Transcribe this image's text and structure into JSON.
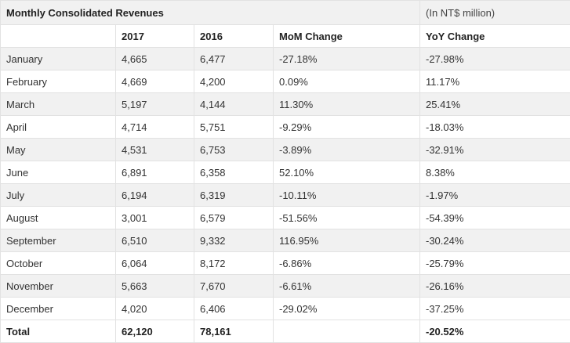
{
  "table": {
    "title": "Monthly Consolidated Revenues",
    "unit_note": "(In NT$ million)",
    "headers": [
      "",
      "2017",
      "2016",
      "MoM Change",
      "YoY Change"
    ],
    "rows": [
      [
        "January",
        "4,665",
        "6,477",
        "-27.18%",
        "-27.98%"
      ],
      [
        "February",
        "4,669",
        "4,200",
        "0.09%",
        "11.17%"
      ],
      [
        "March",
        "5,197",
        "4,144",
        "11.30%",
        "25.41%"
      ],
      [
        "April",
        "4,714",
        "5,751",
        "-9.29%",
        "-18.03%"
      ],
      [
        "May",
        "4,531",
        "6,753",
        "-3.89%",
        "-32.91%"
      ],
      [
        "June",
        "6,891",
        "6,358",
        "52.10%",
        "8.38%"
      ],
      [
        "July",
        "6,194",
        "6,319",
        "-10.11%",
        "-1.97%"
      ],
      [
        "August",
        "3,001",
        "6,579",
        "-51.56%",
        "-54.39%"
      ],
      [
        "September",
        "6,510",
        "9,332",
        "116.95%",
        "-30.24%"
      ],
      [
        "October",
        "6,064",
        "8,172",
        "-6.86%",
        "-25.79%"
      ],
      [
        "November",
        "5,663",
        "7,670",
        "-6.61%",
        "-26.16%"
      ],
      [
        "December",
        "4,020",
        "6,406",
        "-29.02%",
        "-37.25%"
      ]
    ],
    "total": [
      "Total",
      "62,120",
      "78,161",
      "",
      "-20.52%"
    ]
  }
}
